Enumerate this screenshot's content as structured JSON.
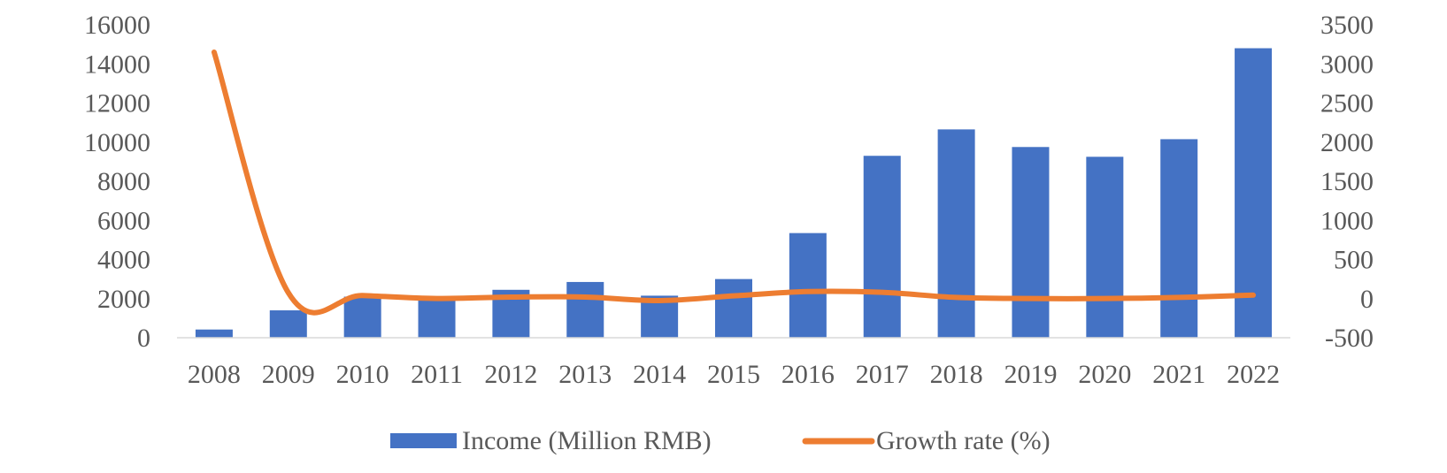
{
  "chart_data": {
    "type": "bar",
    "categories": [
      "2008",
      "2009",
      "2010",
      "2011",
      "2012",
      "2013",
      "2014",
      "2015",
      "2016",
      "2017",
      "2018",
      "2019",
      "2020",
      "2021",
      "2022"
    ],
    "series": [
      {
        "name": "Income (Million RMB)",
        "type": "bar",
        "axis": "left",
        "color": "#4472C4",
        "values": [
          420,
          1400,
          2100,
          2000,
          2450,
          2850,
          2150,
          3000,
          5350,
          9300,
          10650,
          9750,
          9250,
          10150,
          14800
        ]
      },
      {
        "name": "Growth rate (%)",
        "type": "line",
        "axis": "right",
        "color": "#ED7D31",
        "smooth": true,
        "values": [
          3150,
          75,
          40,
          2,
          20,
          20,
          -25,
          35,
          90,
          80,
          15,
          1,
          1,
          15,
          45
        ]
      }
    ],
    "y_left": {
      "ylim": [
        0,
        16000
      ],
      "ticks": [
        "0",
        "2000",
        "4000",
        "6000",
        "8000",
        "10000",
        "12000",
        "14000",
        "16000"
      ]
    },
    "y_right": {
      "ylim": [
        -500,
        3500
      ],
      "ticks": [
        "-500",
        "0",
        "500",
        "1000",
        "1500",
        "2000",
        "2500",
        "3000",
        "3500"
      ]
    },
    "grid": false,
    "legend_position": "bottom"
  }
}
